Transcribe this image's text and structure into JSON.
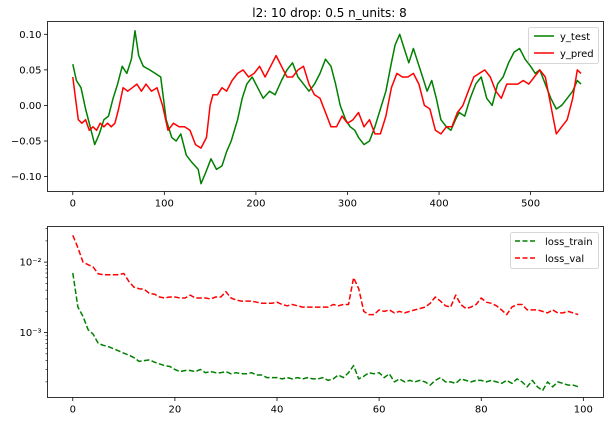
{
  "chart_data": [
    {
      "type": "line",
      "title": "l2: 10 drop: 0.5 n_units: 8",
      "xlabel": "",
      "ylabel": "",
      "xlim": [
        -27.6,
        579.6
      ],
      "ylim": [
        -0.121,
        0.118
      ],
      "xticks": [
        0,
        100,
        200,
        300,
        400,
        500
      ],
      "xtick_labels": [
        "0",
        "100",
        "200",
        "300",
        "400",
        "500"
      ],
      "yticks": [
        0.1,
        0.05,
        0.0,
        -0.05,
        -0.1
      ],
      "ytick_labels": [
        "0.10",
        "0.05",
        "0.00",
        "−0.05",
        "−0.10"
      ],
      "legend_position": "top-right",
      "grid": false,
      "series": [
        {
          "name": "y_test",
          "color": "#008000",
          "style": "solid",
          "x": [
            0,
            4,
            9,
            14,
            19,
            24,
            29,
            34,
            39,
            44,
            49,
            54,
            59,
            64,
            68,
            72,
            77,
            84,
            90,
            96,
            102,
            108,
            113,
            118,
            124,
            130,
            137,
            140,
            145,
            151,
            157,
            163,
            168,
            173,
            180,
            185,
            190,
            196,
            202,
            208,
            215,
            221,
            228,
            234,
            240,
            246,
            252,
            258,
            264,
            270,
            276,
            282,
            287,
            292,
            298,
            303,
            308,
            312,
            318,
            324,
            330,
            336,
            342,
            348,
            352,
            357,
            362,
            367,
            372,
            377,
            382,
            387,
            392,
            397,
            402,
            408,
            413,
            418,
            422,
            428,
            434,
            440,
            446,
            452,
            458,
            464,
            470,
            476,
            482,
            488,
            494,
            500,
            505,
            510,
            516,
            522,
            528,
            534,
            540,
            546,
            551,
            555
          ],
          "y": [
            0.058,
            0.035,
            0.025,
            -0.005,
            -0.03,
            -0.055,
            -0.04,
            -0.02,
            -0.015,
            0.01,
            0.03,
            0.055,
            0.045,
            0.065,
            0.105,
            0.07,
            0.055,
            0.05,
            0.045,
            0.04,
            -0.02,
            -0.045,
            -0.05,
            -0.04,
            -0.07,
            -0.08,
            -0.09,
            -0.11,
            -0.095,
            -0.075,
            -0.09,
            -0.085,
            -0.065,
            -0.05,
            -0.02,
            0.01,
            0.03,
            0.04,
            0.025,
            0.01,
            0.02,
            0.015,
            0.035,
            0.05,
            0.06,
            0.04,
            0.03,
            0.02,
            0.03,
            0.045,
            0.065,
            0.055,
            0.03,
            0.0,
            -0.02,
            -0.03,
            -0.035,
            -0.045,
            -0.055,
            -0.05,
            -0.03,
            -0.005,
            0.02,
            0.06,
            0.085,
            0.1,
            0.08,
            0.06,
            0.08,
            0.06,
            0.04,
            0.02,
            0.035,
            0.01,
            -0.02,
            -0.03,
            -0.035,
            -0.02,
            -0.01,
            -0.015,
            0.01,
            0.03,
            0.04,
            0.01,
            0.0,
            0.03,
            0.04,
            0.06,
            0.075,
            0.08,
            0.065,
            0.055,
            0.045,
            0.05,
            0.03,
            0.01,
            -0.005,
            0.0,
            0.01,
            0.02,
            0.035,
            0.03
          ]
        },
        {
          "name": "y_pred",
          "color": "#ff0000",
          "style": "solid",
          "x": [
            0,
            3,
            6,
            10,
            14,
            18,
            22,
            26,
            30,
            34,
            38,
            42,
            46,
            50,
            55,
            60,
            65,
            70,
            75,
            80,
            86,
            92,
            98,
            104,
            110,
            116,
            122,
            128,
            134,
            140,
            146,
            150,
            153,
            158,
            163,
            168,
            174,
            180,
            186,
            192,
            198,
            204,
            210,
            216,
            222,
            228,
            234,
            240,
            246,
            252,
            258,
            264,
            270,
            276,
            282,
            288,
            294,
            300,
            306,
            312,
            318,
            324,
            330,
            336,
            342,
            348,
            354,
            360,
            366,
            372,
            378,
            384,
            390,
            396,
            402,
            408,
            414,
            420,
            426,
            432,
            438,
            444,
            450,
            456,
            462,
            468,
            474,
            480,
            486,
            492,
            498,
            504,
            510,
            516,
            522,
            528,
            534,
            540,
            546,
            551,
            555
          ],
          "y": [
            0.04,
            0.01,
            -0.02,
            -0.025,
            -0.02,
            -0.035,
            -0.03,
            -0.035,
            -0.025,
            -0.03,
            -0.025,
            -0.03,
            -0.025,
            -0.005,
            0.025,
            0.02,
            0.025,
            0.03,
            0.02,
            0.03,
            0.02,
            0.025,
            0.0,
            -0.035,
            -0.025,
            -0.03,
            -0.03,
            -0.035,
            -0.055,
            -0.06,
            -0.045,
            0.0,
            0.015,
            0.015,
            0.025,
            0.02,
            0.035,
            0.045,
            0.05,
            0.04,
            0.045,
            0.055,
            0.04,
            0.055,
            0.07,
            0.055,
            0.04,
            0.04,
            0.05,
            0.055,
            0.03,
            0.015,
            0.01,
            -0.01,
            -0.03,
            -0.03,
            -0.015,
            -0.025,
            -0.02,
            -0.01,
            -0.03,
            -0.02,
            -0.04,
            -0.04,
            -0.015,
            0.025,
            0.045,
            0.04,
            0.04,
            0.045,
            0.03,
            0.0,
            -0.005,
            -0.035,
            -0.04,
            -0.03,
            -0.03,
            -0.01,
            0.0,
            0.02,
            0.04,
            0.045,
            0.05,
            0.04,
            0.02,
            0.01,
            0.03,
            0.03,
            0.03,
            0.035,
            0.03,
            0.04,
            0.05,
            0.04,
            0.0,
            -0.04,
            -0.03,
            -0.02,
            0.01,
            0.05,
            0.045
          ]
        }
      ]
    },
    {
      "type": "line",
      "title": "",
      "xlabel": "",
      "ylabel": "",
      "yscale": "log",
      "xlim": [
        -4.95,
        103.95
      ],
      "ylim": [
        0.00012,
        0.032
      ],
      "xticks": [
        0,
        20,
        40,
        60,
        80,
        100
      ],
      "xtick_labels": [
        "0",
        "20",
        "40",
        "60",
        "80",
        "100"
      ],
      "yticks": [
        0.01,
        0.001
      ],
      "ytick_labels": [
        "10⁻²",
        "10⁻³"
      ],
      "legend_position": "top-right",
      "grid": false,
      "series": [
        {
          "name": "loss_train",
          "color": "#008000",
          "style": "dashed",
          "x": [
            0,
            1,
            2,
            3,
            4,
            5,
            6,
            7,
            8,
            9,
            10,
            11,
            12,
            13,
            14,
            15,
            16,
            17,
            18,
            19,
            20,
            21,
            22,
            23,
            24,
            25,
            26,
            27,
            28,
            29,
            30,
            31,
            32,
            33,
            34,
            35,
            36,
            37,
            38,
            39,
            40,
            41,
            42,
            43,
            44,
            45,
            46,
            47,
            48,
            49,
            50,
            51,
            52,
            53,
            54,
            55,
            56,
            57,
            58,
            59,
            60,
            61,
            62,
            63,
            64,
            65,
            66,
            67,
            68,
            69,
            70,
            71,
            72,
            73,
            74,
            75,
            76,
            77,
            78,
            79,
            80,
            81,
            82,
            83,
            84,
            85,
            86,
            87,
            88,
            89,
            90,
            91,
            92,
            93,
            94,
            95,
            96,
            97,
            98,
            99
          ],
          "y": [
            0.007,
            0.0023,
            0.0017,
            0.0011,
            0.00095,
            0.0007,
            0.00066,
            0.00063,
            0.00059,
            0.00055,
            0.00051,
            0.00048,
            0.00044,
            0.00039,
            0.0004,
            0.00041,
            0.00038,
            0.00036,
            0.00034,
            0.00033,
            0.0003,
            0.00028,
            0.00029,
            0.00029,
            0.00028,
            0.0003,
            0.00027,
            0.00028,
            0.00027,
            0.00027,
            0.00028,
            0.00026,
            0.00027,
            0.00026,
            0.00026,
            0.00027,
            0.00025,
            0.00025,
            0.00023,
            0.00023,
            0.00023,
            0.00022,
            0.00023,
            0.00022,
            0.00023,
            0.00022,
            0.00023,
            0.00022,
            0.00022,
            0.00023,
            0.00021,
            0.00022,
            0.00025,
            0.00023,
            0.00027,
            0.00034,
            0.00022,
            0.00024,
            0.00027,
            0.00026,
            0.00027,
            0.00023,
            0.00026,
            0.0002,
            0.00022,
            0.0002,
            0.00021,
            0.0002,
            0.00021,
            0.0002,
            0.00018,
            0.00021,
            0.00023,
            0.0002,
            0.0002,
            0.00019,
            0.00022,
            0.00021,
            0.0002,
            0.00021,
            0.00021,
            0.0002,
            0.00021,
            0.0002,
            0.00019,
            0.00021,
            0.00019,
            0.00022,
            0.0002,
            0.00017,
            0.00021,
            0.00017,
            0.00015,
            0.0002,
            0.00017,
            0.0002,
            0.00019,
            0.00018,
            0.00018,
            0.00017
          ]
        },
        {
          "name": "loss_val",
          "color": "#ff0000",
          "style": "dashed",
          "x": [
            0,
            1,
            2,
            3,
            4,
            5,
            6,
            7,
            8,
            9,
            10,
            11,
            12,
            13,
            14,
            15,
            16,
            17,
            18,
            19,
            20,
            21,
            22,
            23,
            24,
            25,
            26,
            27,
            28,
            29,
            30,
            31,
            32,
            33,
            34,
            35,
            36,
            37,
            38,
            39,
            40,
            41,
            42,
            43,
            44,
            45,
            46,
            47,
            48,
            49,
            50,
            51,
            52,
            53,
            54,
            55,
            56,
            57,
            58,
            59,
            60,
            61,
            62,
            63,
            64,
            65,
            66,
            67,
            68,
            69,
            70,
            71,
            72,
            73,
            74,
            75,
            76,
            77,
            78,
            79,
            80,
            81,
            82,
            83,
            84,
            85,
            86,
            87,
            88,
            89,
            90,
            91,
            92,
            93,
            94,
            95,
            96,
            97,
            98,
            99
          ],
          "y": [
            0.024,
            0.016,
            0.01,
            0.0092,
            0.0085,
            0.0068,
            0.0066,
            0.0066,
            0.0066,
            0.0066,
            0.0069,
            0.0053,
            0.0044,
            0.0042,
            0.0041,
            0.0036,
            0.0035,
            0.0032,
            0.0031,
            0.0032,
            0.0032,
            0.0031,
            0.0031,
            0.0034,
            0.0031,
            0.0031,
            0.0031,
            0.003,
            0.0032,
            0.0032,
            0.0038,
            0.0031,
            0.0029,
            0.0028,
            0.0028,
            0.0028,
            0.0027,
            0.0026,
            0.0026,
            0.0026,
            0.0027,
            0.0025,
            0.0024,
            0.0025,
            0.0024,
            0.0023,
            0.0023,
            0.0023,
            0.0023,
            0.0023,
            0.0023,
            0.0025,
            0.0024,
            0.0025,
            0.0025,
            0.006,
            0.0042,
            0.002,
            0.0018,
            0.0018,
            0.0021,
            0.002,
            0.0021,
            0.0019,
            0.002,
            0.0019,
            0.002,
            0.0021,
            0.0022,
            0.0023,
            0.0026,
            0.0032,
            0.0028,
            0.0024,
            0.0023,
            0.0034,
            0.0025,
            0.0022,
            0.0023,
            0.0025,
            0.0031,
            0.0027,
            0.0026,
            0.0024,
            0.0021,
            0.0018,
            0.0023,
            0.0025,
            0.0025,
            0.0021,
            0.0021,
            0.0021,
            0.002,
            0.0019,
            0.0021,
            0.0019,
            0.0019,
            0.002,
            0.0019,
            0.0018
          ]
        }
      ]
    }
  ]
}
